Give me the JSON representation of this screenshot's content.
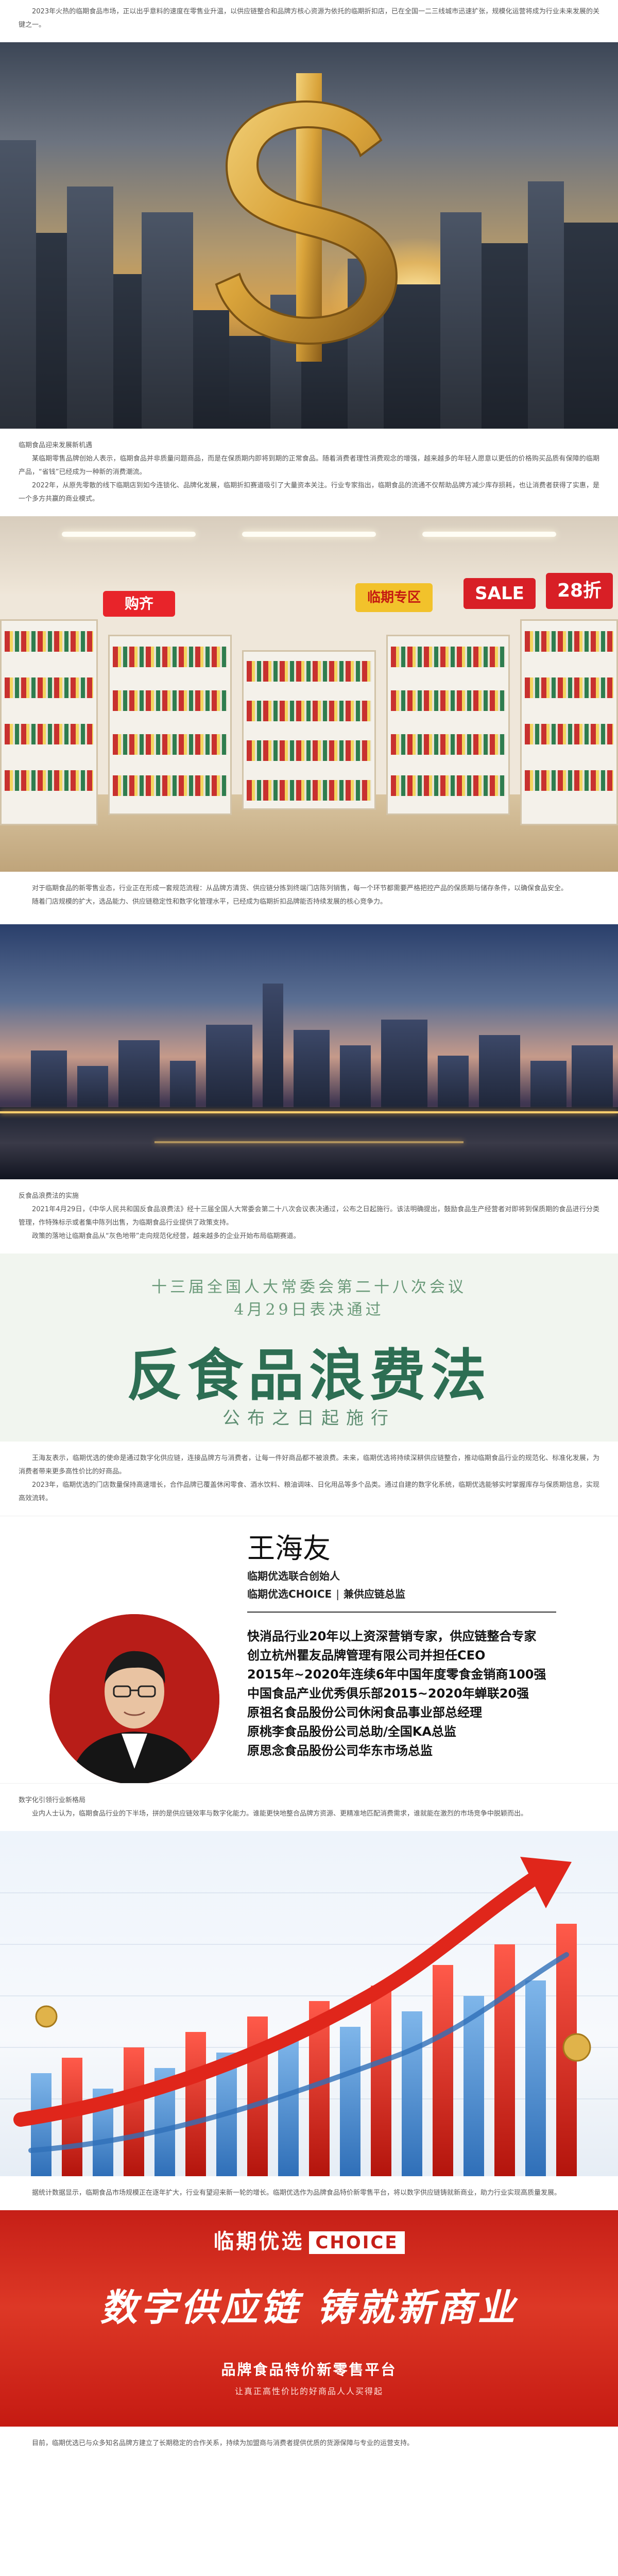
{
  "article": {
    "p_intro": "2023年火热的临期食品市场，正以出乎意料的速度在零售业升温，以供应链整合和品牌方核心资源为依托的临期折扣店，已在全国一二三线城市迅速扩张，规模化运营将成为行业未来发展的关键之一。",
    "sub1": "临期食品迎来发展新机遇",
    "p1": "某临期零售品牌创始人表示，临期食品并非质量问题商品，而是在保质期内即将到期的正常食品。随着消费者理性消费观念的增强，越来越多的年轻人愿意以更低的价格购买品质有保障的临期产品，“省钱”已经成为一种新的消费潮流。",
    "p2": "2022年，从原先零散的线下临期店到如今连锁化、品牌化发展，临期折扣赛道吸引了大量资本关注。行业专家指出，临期食品的流通不仅帮助品牌方减少库存损耗，也让消费者获得了实惠，是一个多方共赢的商业模式。",
    "p3": "对于临期食品的新零售业态，行业正在形成一套规范流程：从品牌方清货、供应链分拣到终端门店陈列销售，每一个环节都需要严格把控产品的保质期与储存条件，以确保食品安全。",
    "p4": "随着门店规模的扩大，选品能力、供应链稳定性和数字化管理水平，已经成为临期折扣品牌能否持续发展的核心竞争力。",
    "sub2": "反食品浪费法的实施",
    "p5": "2021年4月29日，《中华人民共和国反食品浪费法》经十三届全国人大常委会第二十八次会议表决通过，公布之日起施行。该法明确提出，鼓励食品生产经营者对即将到保质期的食品进行分类管理，作特殊标示或者集中陈列出售，为临期食品行业提供了政策支持。",
    "p6": "政策的落地让临期食品从“灰色地带”走向规范化经营，越来越多的企业开始布局临期赛道。",
    "p7": "王海友表示，临期优选的使命是通过数字化供应链，连接品牌方与消费者，让每一件好商品都不被浪费。未来，临期优选将持续深耕供应链整合，推动临期食品行业的规范化、标准化发展，为消费者带来更多高性价比的好商品。",
    "p8": "2023年，临期优选的门店数量保持高速增长，合作品牌已覆盖休闲零食、酒水饮料、粮油调味、日化用品等多个品类。通过自建的数字化系统，临期优选能够实时掌握库存与保质期信息，实现高效流转。",
    "sub3": "数字化引领行业新格局",
    "p9": "业内人士认为，临期食品行业的下半场，拼的是供应链效率与数字化能力。谁能更快地整合品牌方资源、更精准地匹配消费需求，谁就能在激烈的市场竞争中脱颖而出。",
    "p10": "据统计数据显示，临期食品市场规模正在逐年扩大，行业有望迎来新一轮的增长。临期优选作为品牌食品特价新零售平台，将以数字供应链铸就新商业，助力行业实现高质量发展。",
    "p11": "目前，临期优选已与众多知名品牌方建立了长期稳定的合作关系，持续为加盟商与消费者提供优质的货源保障与专业的运营支持。"
  },
  "market_signs": {
    "s1": "购齐",
    "s2": "临期专区",
    "s3": "SALE",
    "s4": "28折"
  },
  "law_banner": {
    "line1": "十三届全国人大常委会第二十八次会议",
    "line2": "4月29日表决通过",
    "title": "反食品浪费法",
    "subtitle": "公布之日起施行"
  },
  "person": {
    "name": "王海友",
    "title1": "临期优选联合创始人",
    "title2_prefix": "临期优选CHOICE",
    "title2_suffix": "兼供应链总监",
    "bullets": [
      "快消品行业20年以上资深营销专家，供应链整合专家",
      "创立杭州瞿友品牌管理有限公司并担任CEO",
      "2015年~2020年连续6年中国年度零食金销商100强",
      "中国食品产业优秀俱乐部2015~2020年蝉联20强",
      "原祖名食品股份公司休闲食品事业部总经理",
      "原桃李食品股份公司总助/全国KA总监",
      "原思念食品股份公司华东市场总监"
    ]
  },
  "choice_banner": {
    "brand": "临期优选",
    "brand_tag": "CHOICE",
    "slogan": "数字供应链 铸就新商业",
    "platform": "品牌食品特价新零售平台",
    "tagline": "让真正高性价比的好商品人人买得起"
  },
  "colors": {
    "law_green": "#2d6e53",
    "choice_red": "#c61f17",
    "dollar_gold": "#d9a33a"
  }
}
